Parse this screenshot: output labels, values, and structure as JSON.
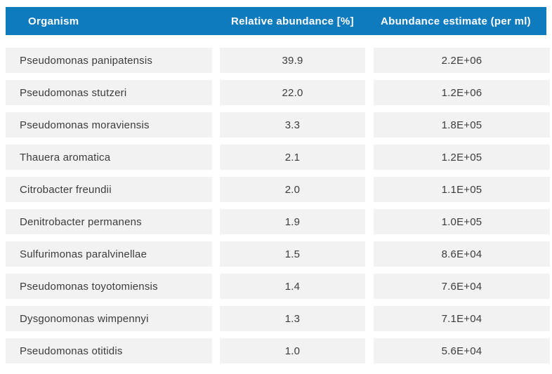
{
  "table": {
    "columns": [
      {
        "label": "Organism",
        "align": "left"
      },
      {
        "label": "Relative abundance [%]",
        "align": "center"
      },
      {
        "label": "Abundance estimate (per ml)",
        "align": "center"
      }
    ],
    "rows": [
      {
        "organism": "Pseudomonas panipatensis",
        "relative_abundance": "39.9",
        "abundance_estimate": "2.2E+06"
      },
      {
        "organism": "Pseudomonas stutzeri",
        "relative_abundance": "22.0",
        "abundance_estimate": "1.2E+06"
      },
      {
        "organism": "Pseudomonas moraviensis",
        "relative_abundance": "3.3",
        "abundance_estimate": "1.8E+05"
      },
      {
        "organism": "Thauera aromatica",
        "relative_abundance": "2.1",
        "abundance_estimate": "1.2E+05"
      },
      {
        "organism": "Citrobacter freundii",
        "relative_abundance": "2.0",
        "abundance_estimate": "1.1E+05"
      },
      {
        "organism": "Denitrobacter permanens",
        "relative_abundance": "1.9",
        "abundance_estimate": "1.0E+05"
      },
      {
        "organism": "Sulfurimonas paralvinellae",
        "relative_abundance": "1.5",
        "abundance_estimate": "8.6E+04"
      },
      {
        "organism": "Pseudomonas toyotomiensis",
        "relative_abundance": "1.4",
        "abundance_estimate": "7.6E+04"
      },
      {
        "organism": "Dysgonomonas wimpennyi",
        "relative_abundance": "1.3",
        "abundance_estimate": "7.1E+04"
      },
      {
        "organism": "Pseudomonas otitidis",
        "relative_abundance": "1.0",
        "abundance_estimate": "5.6E+04"
      }
    ]
  },
  "colors": {
    "header_bg": "#0f7bbf",
    "header_text": "#ffffff",
    "row_bg": "#f2f2f2",
    "row_text": "#3c3c3c",
    "page_bg": "#ffffff"
  }
}
